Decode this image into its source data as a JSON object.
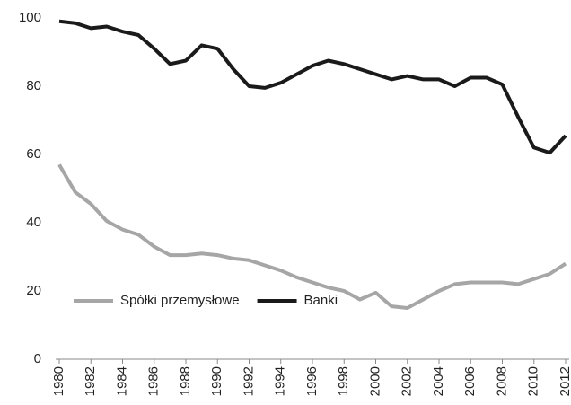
{
  "chart_data": {
    "type": "line",
    "x": [
      1980,
      1981,
      1982,
      1983,
      1984,
      1985,
      1986,
      1987,
      1988,
      1989,
      1990,
      1991,
      1992,
      1993,
      1994,
      1995,
      1996,
      1997,
      1998,
      1999,
      2000,
      2001,
      2002,
      2003,
      2004,
      2005,
      2006,
      2007,
      2008,
      2009,
      2010,
      2011,
      2012
    ],
    "xlim": [
      1980,
      2012
    ],
    "xticks": [
      1980,
      1982,
      1984,
      1986,
      1988,
      1990,
      1992,
      1994,
      1996,
      1998,
      2000,
      2002,
      2004,
      2006,
      2008,
      2010,
      2012
    ],
    "ylim": [
      0,
      100
    ],
    "yticks": [
      0,
      20,
      40,
      60,
      80,
      100
    ],
    "grid": false,
    "legend": "lower left",
    "series": [
      {
        "name": "Spółki przemysłowe",
        "color": "#a6a6a6",
        "values": [
          57,
          49,
          45.5,
          40.5,
          38,
          36.5,
          33,
          30.5,
          30.5,
          31,
          30.5,
          29.5,
          29,
          27.5,
          26,
          24,
          22.5,
          21,
          20,
          17.5,
          19.5,
          15.5,
          15,
          17.5,
          20,
          22,
          22.5,
          22.5,
          22.5,
          22,
          23.5,
          25,
          28
        ]
      },
      {
        "name": "Banki",
        "color": "#1a1a1a",
        "values": [
          99,
          98.5,
          97,
          97.5,
          96,
          95,
          91,
          86.5,
          87.5,
          92,
          91,
          85,
          80,
          79.5,
          81,
          83.5,
          86,
          87.5,
          86.5,
          85,
          83.5,
          82,
          83,
          82,
          82,
          80,
          82.5,
          82.5,
          80.5,
          71,
          62,
          60.5,
          65.5
        ]
      }
    ]
  }
}
